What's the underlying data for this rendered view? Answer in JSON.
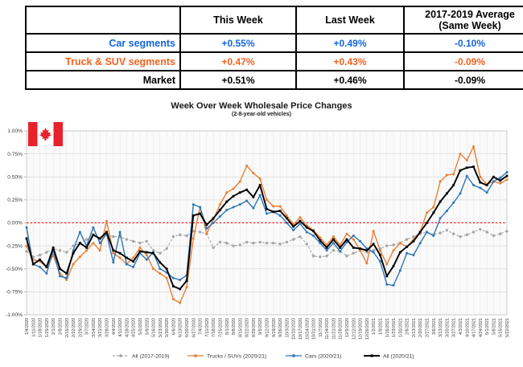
{
  "table": {
    "col_headers": [
      "This Week",
      "Last Week",
      "2017-2019 Average (Same Week)"
    ],
    "rows": [
      {
        "label": "Car segments",
        "color": "#1565e0",
        "this_week": "+0.55%",
        "last_week": "+0.49%",
        "avg": "-0.10%"
      },
      {
        "label": "Truck & SUV segments",
        "color": "#f4611e",
        "this_week": "+0.47%",
        "last_week": "+0.43%",
        "avg": "-0.09%"
      },
      {
        "label": "Market",
        "color": "#000000",
        "this_week": "+0.51%",
        "last_week": "+0.46%",
        "avg": "-0.09%"
      }
    ]
  },
  "chart_data": {
    "type": "line",
    "title": "Week Over Week Wholesale Price Changes",
    "subtitle": "(2-8-year-old vehicles)",
    "xlabel": "",
    "ylabel": "",
    "ylim": [
      -1.0,
      1.0
    ],
    "yticks": [
      1.0,
      0.75,
      0.5,
      0.25,
      0.0,
      -0.25,
      -0.5,
      -0.75,
      -1.0
    ],
    "ytick_labels": [
      "1.00%",
      "0.75%",
      "0.50%",
      "0.25%",
      "0.00%",
      "-0.25%",
      "-0.50%",
      "-0.75%",
      "-1.00%"
    ],
    "grid": true,
    "zero_line": {
      "color": "#ff0000",
      "style": "dashed"
    },
    "legend_position": "bottom",
    "flag_icon": "canada-flag",
    "flag_colors": {
      "red": "#e8222d",
      "white": "#ffffff"
    },
    "x": [
      "1/4/2020",
      "1/11/2020",
      "1/18/2020",
      "1/25/2020",
      "2/1/2020",
      "2/8/2020",
      "2/15/2020",
      "2/22/2020",
      "2/29/2020",
      "3/7/2020",
      "3/14/2020",
      "3/21/2020",
      "3/28/2020",
      "4/4/2020",
      "4/11/2020",
      "4/18/2020",
      "4/25/2020",
      "5/2/2020",
      "5/9/2020",
      "5/16/2020",
      "5/23/2020",
      "5/30/2020",
      "6/6/2020",
      "6/13/2020",
      "6/20/2020",
      "6/27/2020",
      "7/4/2020",
      "7/11/2020",
      "7/18/2020",
      "7/25/2020",
      "8/1/2020",
      "8/8/2020",
      "8/15/2020",
      "8/22/2020",
      "8/29/2020",
      "9/5/2020",
      "9/12/2020",
      "9/19/2020",
      "9/26/2020",
      "10/3/2020",
      "10/10/2020",
      "10/17/2020",
      "10/24/2020",
      "10/31/2020",
      "11/7/2020",
      "11/14/2020",
      "11/21/2020",
      "11/28/2020",
      "12/5/2020",
      "12/12/2020",
      "12/19/2020",
      "12/26/2020",
      "1/2/2021",
      "1/9/2021",
      "1/16/2021",
      "1/23/2021",
      "1/30/2021",
      "2/6/2021",
      "2/13/2021",
      "2/20/2021",
      "2/27/2021",
      "3/6/2021",
      "3/13/2021",
      "3/20/2021",
      "3/27/2021",
      "4/3/2021",
      "4/10/2021",
      "4/17/2021",
      "4/24/2021",
      "5/1/2021",
      "5/8/2021",
      "5/15/2021",
      "5/22/2021"
    ],
    "series": [
      {
        "name": "All (2017-2019)",
        "color": "#a6a6a6",
        "line_style": "dashed",
        "marker": "circle",
        "values": [
          -0.31,
          -0.37,
          -0.35,
          -0.32,
          -0.28,
          -0.3,
          -0.32,
          -0.25,
          -0.22,
          -0.18,
          -0.13,
          -0.17,
          -0.12,
          -0.15,
          -0.15,
          -0.18,
          -0.2,
          -0.22,
          -0.2,
          -0.3,
          -0.33,
          -0.28,
          -0.15,
          -0.13,
          -0.14,
          -0.09,
          -0.1,
          -0.12,
          -0.27,
          -0.21,
          -0.22,
          -0.25,
          -0.24,
          -0.21,
          -0.22,
          -0.21,
          -0.22,
          -0.22,
          -0.23,
          -0.21,
          -0.18,
          -0.15,
          -0.23,
          -0.36,
          -0.37,
          -0.36,
          -0.3,
          -0.31,
          -0.36,
          -0.33,
          -0.3,
          -0.32,
          -0.3,
          -0.28,
          -0.25,
          -0.24,
          -0.22,
          -0.18,
          -0.15,
          -0.12,
          -0.1,
          -0.13,
          -0.11,
          -0.08,
          -0.12,
          -0.15,
          -0.13,
          -0.1,
          -0.07,
          -0.1,
          -0.14,
          -0.12,
          -0.09
        ]
      },
      {
        "name": "Trucks / SUVs (2020/21)",
        "color": "#ed7d31",
        "line_style": "solid",
        "marker": "circle",
        "values": [
          -0.25,
          -0.4,
          -0.42,
          -0.48,
          -0.35,
          -0.55,
          -0.62,
          -0.45,
          -0.37,
          -0.3,
          -0.22,
          -0.3,
          0.02,
          -0.33,
          -0.38,
          -0.45,
          -0.38,
          -0.27,
          -0.35,
          -0.5,
          -0.55,
          -0.6,
          -0.83,
          -0.87,
          -0.7,
          -0.17,
          0.17,
          -0.12,
          0.04,
          0.2,
          0.33,
          0.37,
          0.45,
          0.62,
          0.54,
          0.48,
          0.25,
          0.18,
          0.18,
          0.08,
          -0.02,
          0.06,
          -0.03,
          -0.08,
          -0.16,
          -0.24,
          -0.15,
          -0.24,
          -0.12,
          -0.18,
          -0.3,
          -0.44,
          -0.09,
          -0.3,
          -0.45,
          -0.3,
          -0.22,
          -0.26,
          -0.18,
          -0.1,
          0.11,
          0.17,
          0.45,
          0.52,
          0.53,
          0.75,
          0.68,
          0.83,
          0.5,
          0.42,
          0.45,
          0.43,
          0.47
        ]
      },
      {
        "name": "Cars (2020/21)",
        "color": "#2e75b6",
        "line_style": "solid",
        "marker": "circle",
        "values": [
          -0.05,
          -0.45,
          -0.48,
          -0.55,
          -0.3,
          -0.58,
          -0.6,
          -0.3,
          -0.1,
          -0.25,
          -0.05,
          -0.22,
          -0.12,
          -0.43,
          -0.1,
          -0.45,
          -0.48,
          -0.33,
          -0.4,
          -0.32,
          -0.5,
          -0.54,
          -0.6,
          -0.62,
          -0.57,
          0.2,
          0.17,
          -0.06,
          0.0,
          0.07,
          0.14,
          0.17,
          0.2,
          0.24,
          0.16,
          0.3,
          0.1,
          0.12,
          0.08,
          0.0,
          -0.08,
          -0.01,
          -0.1,
          -0.14,
          -0.22,
          -0.3,
          -0.22,
          -0.31,
          -0.21,
          -0.14,
          -0.2,
          -0.28,
          -0.32,
          -0.42,
          -0.67,
          -0.68,
          -0.52,
          -0.33,
          -0.35,
          -0.22,
          -0.1,
          -0.14,
          0.05,
          0.13,
          0.22,
          0.32,
          0.51,
          0.41,
          0.38,
          0.33,
          0.45,
          0.49,
          0.55
        ]
      },
      {
        "name": "All (2020/21)",
        "color": "#000000",
        "line_style": "solid",
        "marker": "square",
        "values": [
          -0.17,
          -0.45,
          -0.4,
          -0.48,
          -0.27,
          -0.5,
          -0.55,
          -0.33,
          -0.22,
          -0.27,
          -0.13,
          -0.17,
          -0.1,
          -0.3,
          -0.33,
          -0.38,
          -0.42,
          -0.31,
          -0.32,
          -0.33,
          -0.43,
          -0.5,
          -0.69,
          -0.72,
          -0.63,
          0.08,
          0.1,
          -0.02,
          0.05,
          0.14,
          0.23,
          0.29,
          0.33,
          0.36,
          0.28,
          0.41,
          0.15,
          0.12,
          0.13,
          0.05,
          -0.04,
          0.02,
          -0.05,
          -0.09,
          -0.19,
          -0.27,
          -0.18,
          -0.27,
          -0.18,
          -0.27,
          -0.28,
          -0.3,
          -0.23,
          -0.35,
          -0.58,
          -0.47,
          -0.32,
          -0.26,
          -0.2,
          -0.1,
          0.0,
          0.11,
          0.23,
          0.32,
          0.41,
          0.57,
          0.6,
          0.61,
          0.44,
          0.41,
          0.5,
          0.46,
          0.51
        ]
      }
    ]
  }
}
